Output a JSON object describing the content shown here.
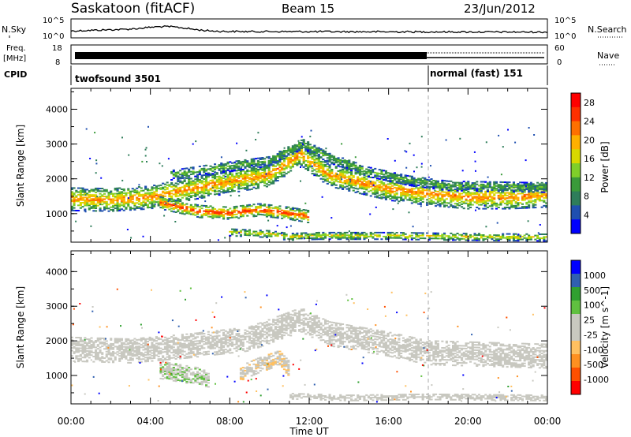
{
  "header": {
    "station": "Saskatoon (fitACF)",
    "beam": "Beam 15",
    "date": "23/Jun/2012"
  },
  "strips": {
    "nsky_label": "N.Sky",
    "nsky_ticks": [
      "10^5",
      "10^0"
    ],
    "nsearch_label": "N.Search",
    "nsearch_ticks": [
      "10^5",
      "10^0"
    ],
    "freq_label": "Freq.",
    "freq_unit": "[MHz]",
    "freq_ticks": [
      "18",
      "8"
    ],
    "nave_label": "Nave",
    "nave_ticks": [
      "60",
      "0"
    ],
    "cpid_label": "CPID",
    "cpid_segments": [
      {
        "name": "twofsound 3501",
        "start_hour": 0,
        "end_hour": 18
      },
      {
        "name": "normal (fast) 151",
        "start_hour": 18,
        "end_hour": 24
      }
    ]
  },
  "axes": {
    "x_label": "Time UT",
    "x_ticks": [
      "00:00",
      "04:00",
      "08:00",
      "12:00",
      "16:00",
      "20:00",
      "00:00"
    ],
    "x_range_hours": [
      0,
      24
    ],
    "y_label": "Slant Range [km]",
    "y_ticks": [
      "1000",
      "2000",
      "3000",
      "4000"
    ],
    "y_range_km": [
      180,
      4600
    ]
  },
  "chart_data": [
    {
      "type": "heatmap",
      "parameter": "power",
      "colorbar_label": "Power [dB]",
      "colorbar_ticks": [
        "4",
        "8",
        "12",
        "16",
        "20",
        "24",
        "28"
      ],
      "color_range": [
        0,
        30
      ],
      "colors": [
        "#0000ff",
        "#1f4fb0",
        "#2e7d5a",
        "#3a9a3a",
        "#7fcf2a",
        "#d8d800",
        "#ffb000",
        "#ff7000",
        "#ff3000",
        "#ff0000"
      ],
      "echo_bands": [
        {
          "name": "main",
          "points": [
            [
              0,
              1400
            ],
            [
              2,
              1380
            ],
            [
              4,
              1450
            ],
            [
              6,
              1700
            ],
            [
              8,
              1900
            ],
            [
              10,
              2100
            ],
            [
              11.6,
              2700
            ],
            [
              13,
              2100
            ],
            [
              16,
              1700
            ],
            [
              18,
              1550
            ],
            [
              20,
              1450
            ],
            [
              22,
              1450
            ],
            [
              24,
              1500
            ]
          ],
          "width_km": 650,
          "peak_db": 22
        },
        {
          "name": "upper",
          "points": [
            [
              5,
              2100
            ],
            [
              8,
              2350
            ],
            [
              10,
              2500
            ],
            [
              11.7,
              3000
            ],
            [
              13,
              2600
            ],
            [
              15,
              2200
            ],
            [
              17,
              1950
            ],
            [
              19,
              1800
            ],
            [
              24,
              1750
            ]
          ],
          "width_km": 300,
          "peak_db": 12
        },
        {
          "name": "low",
          "points": [
            [
              4.5,
              1300
            ],
            [
              6.5,
              1050
            ],
            [
              8,
              1000
            ],
            [
              9.5,
              1100
            ],
            [
              11,
              1000
            ],
            [
              12,
              900
            ]
          ],
          "width_km": 350,
          "peak_db": 26
        },
        {
          "name": "ground",
          "points": [
            [
              8,
              450
            ],
            [
              10,
              400
            ],
            [
              11,
              320
            ],
            [
              12.5,
              350
            ],
            [
              16,
              350
            ],
            [
              20,
              320
            ],
            [
              24,
              300
            ]
          ],
          "width_km": 200,
          "peak_db": 18
        }
      ]
    },
    {
      "type": "heatmap",
      "parameter": "velocity",
      "colorbar_label": "Velocity [m s^-1]",
      "colorbar_ticks": [
        "1000",
        "500",
        "100",
        "25",
        "-25",
        "-100",
        "-500",
        "-1000"
      ],
      "color_range": [
        -1000,
        1000
      ],
      "colors": [
        "#ff0000",
        "#ff5000",
        "#ff9020",
        "#ffc060",
        "#c8c8c0",
        "#c8c8c0",
        "#60c040",
        "#30a030",
        "#3060b0",
        "#0000ff"
      ],
      "echo_bands": [
        {
          "name": "ground-scatter",
          "points": [
            [
              0,
              1750
            ],
            [
              3,
              1700
            ],
            [
              6,
              1850
            ],
            [
              9,
              2050
            ],
            [
              11.6,
              2600
            ],
            [
              13,
              2200
            ],
            [
              16,
              1900
            ],
            [
              18,
              1650
            ],
            [
              24,
              1550
            ]
          ],
          "width_km": 700,
          "velocity": 0
        },
        {
          "name": "westward",
          "points": [
            [
              4.5,
              1150
            ],
            [
              6,
              1000
            ],
            [
              7,
              900
            ]
          ],
          "width_km": 500,
          "velocity": 150
        },
        {
          "name": "eastward",
          "points": [
            [
              8.5,
              1050
            ],
            [
              9.5,
              1300
            ],
            [
              10.5,
              1500
            ],
            [
              11,
              1200
            ]
          ],
          "width_km": 450,
          "velocity": -150
        },
        {
          "name": "ground-low",
          "points": [
            [
              11,
              400
            ],
            [
              14,
              350
            ],
            [
              18,
              380
            ],
            [
              24,
              350
            ]
          ],
          "width_km": 180,
          "velocity": -60
        }
      ]
    }
  ]
}
